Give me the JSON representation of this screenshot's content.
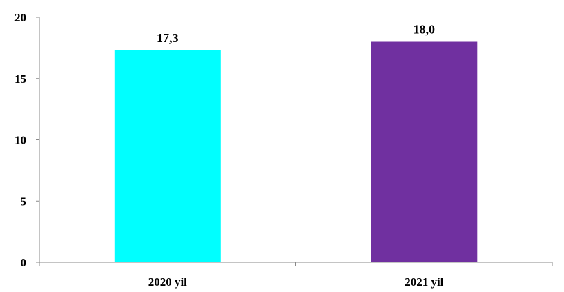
{
  "chart_data": {
    "type": "bar",
    "categories": [
      "2020 yil",
      "2021 yil"
    ],
    "values": [
      17.3,
      18.0
    ],
    "data_labels": [
      "17,3",
      "18,0"
    ],
    "colors": [
      "#00FFFF",
      "#7030A0"
    ],
    "yticks": [
      "0",
      "5",
      "10",
      "15",
      "20"
    ],
    "ylim": [
      0,
      20
    ],
    "grid": false,
    "legend": "none"
  }
}
